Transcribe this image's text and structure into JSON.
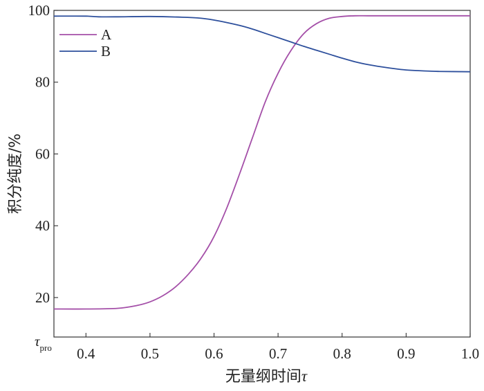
{
  "chart_data": {
    "type": "line",
    "xlabel_text": "无量纲时间",
    "xlabel_symbol": "τ",
    "ylabel": "积分纯度/%",
    "xlim": [
      0.35,
      1.0
    ],
    "ylim": [
      9,
      100
    ],
    "x_ticks": [
      0.4,
      0.5,
      0.6,
      0.7,
      0.8,
      0.9,
      1.0
    ],
    "x_tick_labels": [
      "0.4",
      "0.5",
      "0.6",
      "0.7",
      "0.8",
      "0.9",
      "1.0"
    ],
    "x_start_label": {
      "symbol": "τ",
      "subscript": "pro"
    },
    "y_ticks": [
      20,
      40,
      60,
      80,
      100
    ],
    "y_tick_labels": [
      "20",
      "40",
      "60",
      "80",
      "100"
    ],
    "legend_position": "top-left",
    "grid": false,
    "series": [
      {
        "name": "A",
        "color": "#a44fa8",
        "x": [
          0.35,
          0.4,
          0.45,
          0.48,
          0.5,
          0.52,
          0.54,
          0.56,
          0.58,
          0.6,
          0.62,
          0.64,
          0.66,
          0.68,
          0.7,
          0.72,
          0.74,
          0.76,
          0.78,
          0.8,
          0.82,
          0.84,
          0.86,
          0.9,
          0.95,
          1.0
        ],
        "y": [
          16.8,
          16.8,
          17.0,
          17.8,
          18.8,
          20.5,
          23.0,
          26.5,
          31.0,
          37.0,
          45.0,
          54.5,
          64.5,
          74.5,
          82.5,
          88.8,
          93.5,
          96.3,
          97.8,
          98.3,
          98.5,
          98.5,
          98.5,
          98.5,
          98.5,
          98.5
        ]
      },
      {
        "name": "B",
        "color": "#2d4f9c",
        "x": [
          0.35,
          0.4,
          0.42,
          0.45,
          0.5,
          0.55,
          0.58,
          0.6,
          0.62,
          0.64,
          0.66,
          0.68,
          0.7,
          0.72,
          0.74,
          0.76,
          0.78,
          0.8,
          0.82,
          0.84,
          0.86,
          0.88,
          0.9,
          0.92,
          0.95,
          1.0
        ],
        "y": [
          98.4,
          98.4,
          98.2,
          98.2,
          98.3,
          98.1,
          97.8,
          97.3,
          96.6,
          95.8,
          94.8,
          93.6,
          92.4,
          91.2,
          90.0,
          88.9,
          87.8,
          86.7,
          85.7,
          84.9,
          84.3,
          83.8,
          83.4,
          83.2,
          83.0,
          82.9
        ]
      }
    ]
  }
}
